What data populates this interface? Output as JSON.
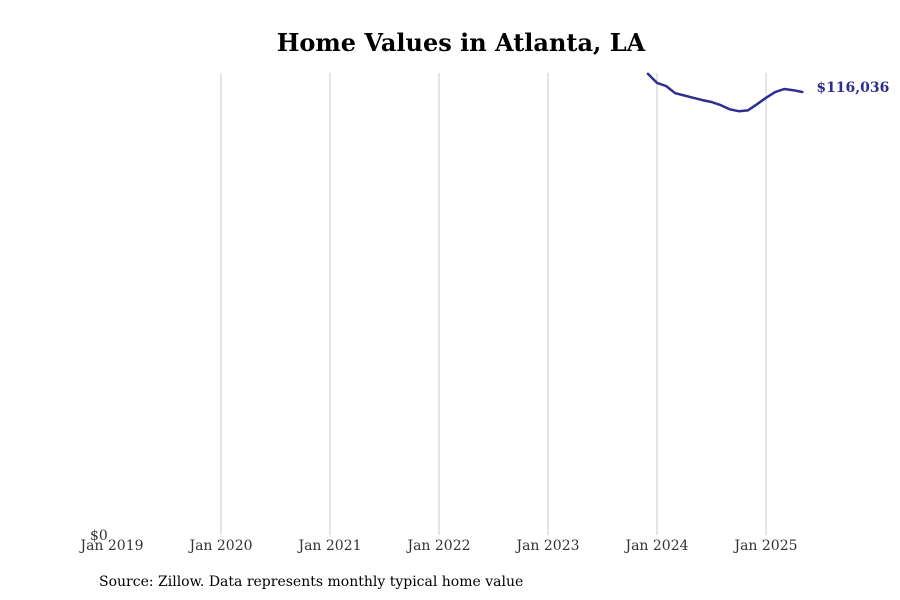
{
  "chart_data": {
    "type": "line",
    "title": "Home Values in Atlanta, LA",
    "xlabel": "",
    "ylabel": "",
    "x_ticks": [
      "Jan 2019",
      "Jan 2020",
      "Jan 2021",
      "Jan 2022",
      "Jan 2023",
      "Jan 2024",
      "Jan 2025"
    ],
    "y_ticks": [
      "$0"
    ],
    "xlim": [
      "2019-01",
      "2025-07"
    ],
    "ylim": [
      0,
      121000
    ],
    "grid": "vertical",
    "series": [
      {
        "color": "#2e2e8f",
        "end_label": "$116,036",
        "points": [
          {
            "x": "2023-12",
            "y": 120800
          },
          {
            "x": "2024-01",
            "y": 118400
          },
          {
            "x": "2024-02",
            "y": 117600
          },
          {
            "x": "2024-03",
            "y": 115700
          },
          {
            "x": "2024-04",
            "y": 115100
          },
          {
            "x": "2024-05",
            "y": 114500
          },
          {
            "x": "2024-06",
            "y": 113900
          },
          {
            "x": "2024-07",
            "y": 113400
          },
          {
            "x": "2024-08",
            "y": 112600
          },
          {
            "x": "2024-09",
            "y": 111500
          },
          {
            "x": "2024-10",
            "y": 111000
          },
          {
            "x": "2024-11",
            "y": 111200
          },
          {
            "x": "2024-12",
            "y": 112800
          },
          {
            "x": "2025-01",
            "y": 114500
          },
          {
            "x": "2025-02",
            "y": 116000
          },
          {
            "x": "2025-03",
            "y": 116800
          },
          {
            "x": "2025-04",
            "y": 116500
          },
          {
            "x": "2025-05",
            "y": 116036
          }
        ]
      }
    ]
  },
  "source_note": "Source: Zillow. Data represents monthly typical home value"
}
